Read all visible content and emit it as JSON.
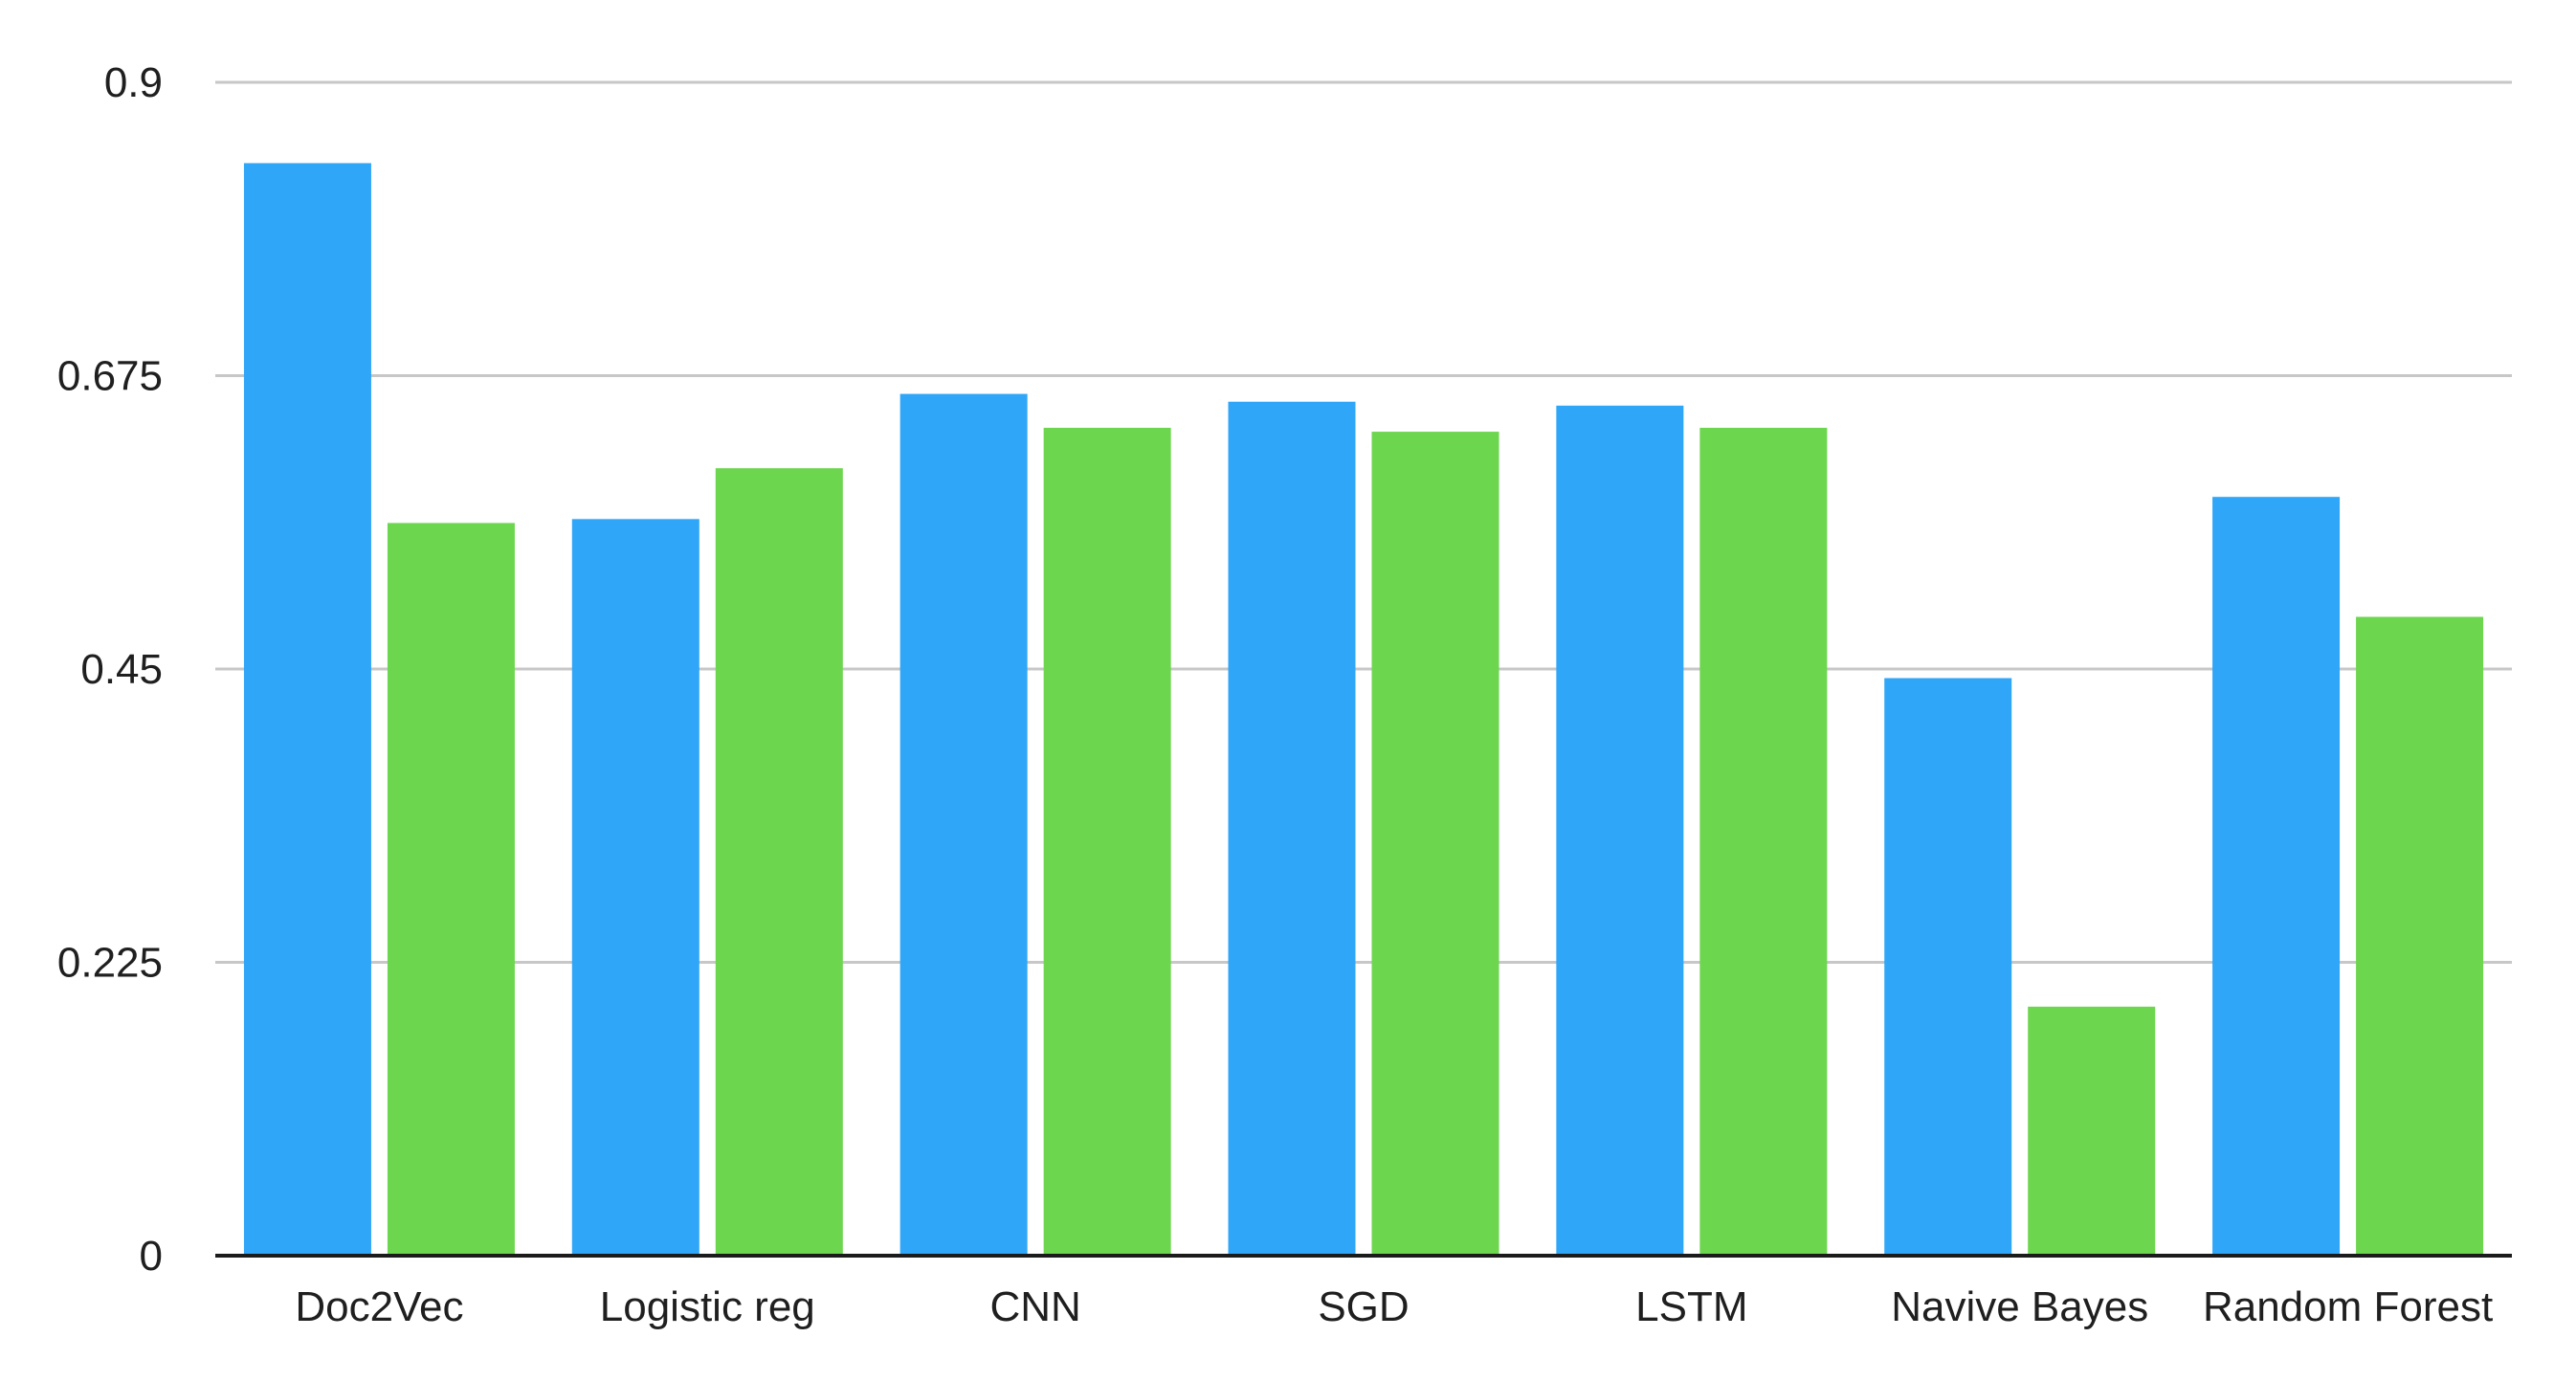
{
  "chart_data": {
    "type": "bar",
    "title": "",
    "xlabel": "",
    "ylabel": "",
    "categories": [
      "Doc2Vec",
      "Logistic reg",
      "CNN",
      "SGD",
      "LSTM",
      "Navive Bayes",
      "Random Forest"
    ],
    "series": [
      {
        "color": "#2fa6f7",
        "values": [
          0.838,
          0.565,
          0.661,
          0.655,
          0.652,
          0.443,
          0.582
        ]
      },
      {
        "color": "#6dd64f",
        "values": [
          0.562,
          0.604,
          0.635,
          0.632,
          0.635,
          0.191,
          0.49
        ]
      }
    ],
    "ylim": [
      0,
      0.9
    ],
    "yticks": [
      "0",
      "0.225",
      "0.45",
      "0.675",
      "0.9"
    ],
    "grid": true,
    "legend": "none"
  }
}
